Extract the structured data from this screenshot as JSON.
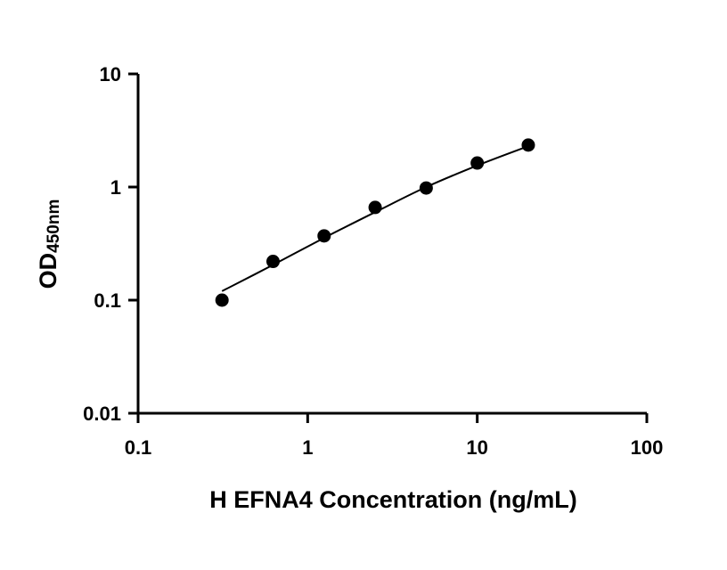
{
  "chart_data": {
    "type": "scatter",
    "xlabel": "H EFNA4 Concentration (ng/mL)",
    "ylabel_main": "OD",
    "ylabel_sub": "450nm",
    "x_scale": "log",
    "y_scale": "log",
    "xlim": [
      0.1,
      100
    ],
    "ylim": [
      0.01,
      10
    ],
    "x_ticks": [
      "0.1",
      "1",
      "10",
      "100"
    ],
    "y_ticks": [
      "0.01",
      "0.1",
      "1",
      "10"
    ],
    "grid": false,
    "series": [
      {
        "x": [
          0.3125,
          0.625,
          1.25,
          2.5,
          5,
          10,
          20
        ],
        "y": [
          0.1,
          0.22,
          0.37,
          0.66,
          0.98,
          1.63,
          2.35
        ]
      }
    ],
    "fit_curve": {
      "x": [
        0.3125,
        0.625,
        1.25,
        2.5,
        5,
        10,
        20
      ],
      "y": [
        0.12,
        0.205,
        0.355,
        0.6,
        1.0,
        1.55,
        2.3
      ]
    }
  }
}
